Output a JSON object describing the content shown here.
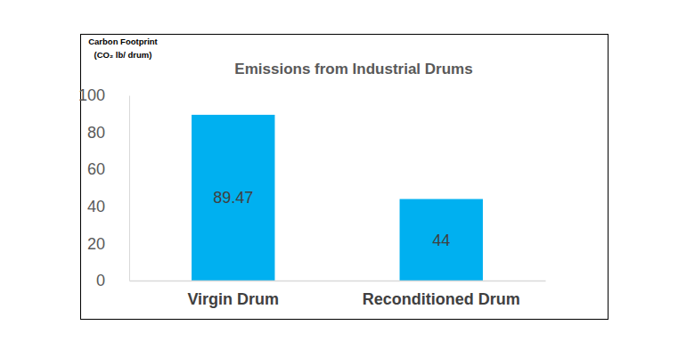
{
  "chart_data": {
    "type": "bar",
    "title": "Emissions from Industrial Drums",
    "y_label": [
      "Carbon Footprint",
      "(CO₂ lb/ drum)"
    ],
    "categories": [
      "Virgin Drum",
      "Reconditioned Drum"
    ],
    "values": [
      89.47,
      44
    ],
    "color": "#00b0f0",
    "ylim": [
      0,
      100
    ],
    "yticks": [
      0,
      20,
      40,
      60,
      80,
      100
    ],
    "grid": false,
    "data_labels": true
  }
}
